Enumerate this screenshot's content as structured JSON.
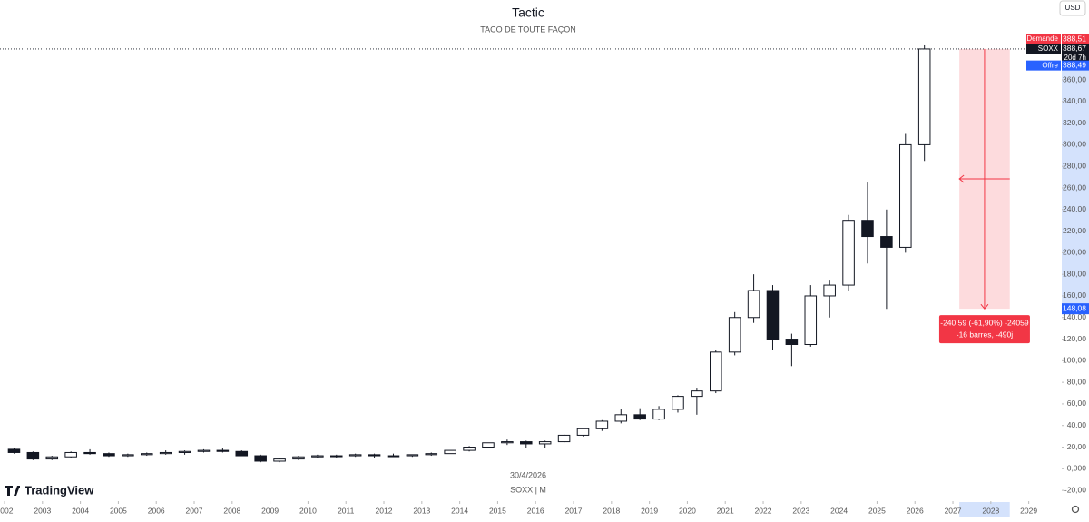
{
  "chart_data": {
    "type": "candlestick",
    "title": "Tactic",
    "subtitle": "TACO DE TOUTE FAÇON",
    "currency": "USD",
    "brand": "TradingView",
    "date_label": "30/4/2026",
    "symbol_label": "SOXX | M",
    "x": [
      2002.0,
      2002.5,
      2003.0,
      2003.5,
      2004.0,
      2004.5,
      2005.0,
      2005.5,
      2006.0,
      2006.5,
      2007.0,
      2007.5,
      2008.0,
      2008.5,
      2009.0,
      2009.5,
      2010.0,
      2010.5,
      2011.0,
      2011.5,
      2012.0,
      2012.5,
      2013.0,
      2013.5,
      2014.0,
      2014.5,
      2015.0,
      2015.5,
      2016.0,
      2016.5,
      2017.0,
      2017.5,
      2018.0,
      2018.5,
      2019.0,
      2019.5,
      2020.0,
      2020.5,
      2021.0,
      2021.5,
      2022.0,
      2022.5,
      2023.0,
      2023.5,
      2024.0,
      2024.5,
      2025.0,
      2025.5,
      2026.0
    ],
    "open": [
      18,
      15,
      9,
      11,
      15,
      14,
      12,
      13,
      14,
      15,
      16,
      17,
      16,
      12,
      7,
      9,
      11,
      12,
      12,
      13,
      12,
      12,
      13,
      14,
      17,
      20,
      24,
      25,
      23,
      25,
      31,
      37,
      44,
      50,
      46,
      55,
      67,
      72,
      108,
      140,
      165,
      120,
      115,
      160,
      170,
      230,
      215,
      205,
      300
    ],
    "high": [
      19,
      16,
      12,
      16,
      18,
      15,
      14,
      15,
      17,
      17,
      18,
      19,
      17,
      13,
      10,
      12,
      13,
      13,
      14,
      14,
      14,
      13,
      15,
      17,
      21,
      24,
      27,
      26,
      26,
      32,
      38,
      45,
      55,
      56,
      58,
      68,
      75,
      110,
      145,
      180,
      170,
      125,
      170,
      175,
      235,
      265,
      240,
      310,
      392
    ],
    "low": [
      14,
      8,
      8,
      10,
      13,
      11,
      11,
      12,
      13,
      13,
      15,
      15,
      12,
      6,
      6,
      8,
      10,
      10,
      11,
      10,
      11,
      11,
      12,
      14,
      16,
      19,
      22,
      19,
      19,
      24,
      30,
      35,
      42,
      45,
      45,
      52,
      50,
      70,
      105,
      135,
      110,
      95,
      113,
      140,
      165,
      190,
      148,
      200,
      285
    ],
    "close": [
      15,
      9,
      11,
      15,
      14,
      12,
      13,
      14,
      15,
      16,
      17,
      16,
      12,
      7,
      9,
      11,
      12,
      12,
      13,
      12,
      12,
      13,
      14,
      17,
      20,
      24,
      25,
      23,
      25,
      31,
      37,
      44,
      50,
      46,
      55,
      67,
      72,
      108,
      140,
      165,
      120,
      115,
      160,
      170,
      230,
      215,
      205,
      300,
      388.67
    ],
    "up_color": "#ffffff",
    "down_color": "#131722",
    "border_color": "#131722",
    "xlim": [
      2001.88,
      2029.87
    ],
    "xticks": [
      2002,
      2003,
      2004,
      2005,
      2006,
      2007,
      2008,
      2009,
      2010,
      2011,
      2012,
      2013,
      2014,
      2015,
      2016,
      2017,
      2018,
      2019,
      2020,
      2021,
      2022,
      2023,
      2024,
      2025,
      2026,
      2027,
      2028,
      2029
    ],
    "ylim": [
      -30,
      434
    ],
    "yticks": [
      {
        "value": -20,
        "label": "-20,00"
      },
      {
        "value": 0,
        "label": "0,000"
      },
      {
        "value": 20,
        "label": "20,00"
      },
      {
        "value": 40,
        "label": "40,00"
      },
      {
        "value": 60,
        "label": "60,00"
      },
      {
        "value": 80,
        "label": "80,00"
      },
      {
        "value": 100,
        "label": "100,00"
      },
      {
        "value": 120,
        "label": "120,00"
      },
      {
        "value": 140,
        "label": "140,00"
      },
      {
        "value": 160,
        "label": "160,00"
      },
      {
        "value": 180,
        "label": "180,00"
      },
      {
        "value": 200,
        "label": "200,00"
      },
      {
        "value": 220,
        "label": "220,00"
      },
      {
        "value": 240,
        "label": "240,00"
      },
      {
        "value": 260,
        "label": "260,00"
      },
      {
        "value": 280,
        "label": "280,00"
      },
      {
        "value": 300,
        "label": "300,00"
      },
      {
        "value": 320,
        "label": "320,00"
      },
      {
        "value": 340,
        "label": "340,00"
      },
      {
        "value": 360,
        "label": "360,00"
      }
    ],
    "price_labels": [
      {
        "name": "Demande",
        "value": 388.51,
        "label": "388,51",
        "color": "#f23645"
      },
      {
        "name": "SOXX",
        "value": 388.67,
        "label": "388,67",
        "color": "#131722",
        "countdown": "20d 7h"
      },
      {
        "name": "Offre",
        "value": 388.49,
        "label": "388,49",
        "color": "#2962ff"
      }
    ],
    "measure": {
      "xlim": [
        2027.17,
        2028.5
      ],
      "from": 388.67,
      "to": 148.08,
      "to_label": "148,08",
      "color": "#f23645",
      "text": [
        "-240,59 (-61,90%) -24059",
        "-16 barres, -490j"
      ]
    }
  }
}
